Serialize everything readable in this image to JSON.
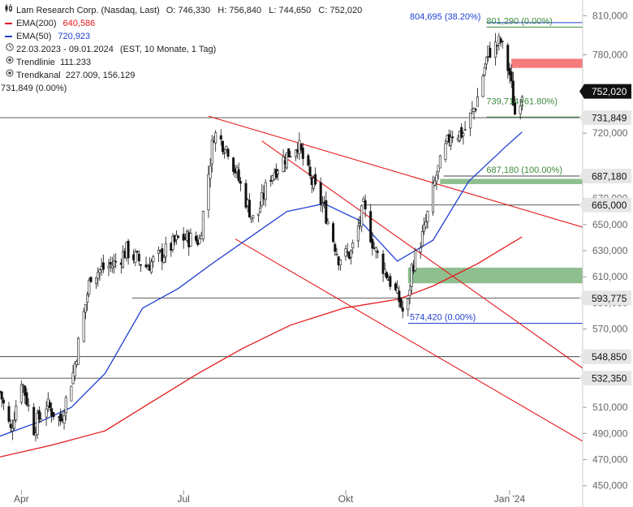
{
  "legend": {
    "title": "Lam Research Corp. (Nasdaq, Last)",
    "ohlc": "O: 746,330   H: 756,840   L: 744,650   C: 752,020",
    "ema200": {
      "label": "EMA(200)",
      "value": "640,586",
      "color": "#e41a1c"
    },
    "ema50": {
      "label": "EMA(50)",
      "value": "720,923",
      "color": "#1f3fd1"
    },
    "range": "22.03.2023 - 09.01.2024",
    "range_info": "(EST, 10 Monate, 1 Tag)",
    "trendline": "Trendlinie  111.233",
    "trendchannel": "Trendkanal  227.009, 156.129",
    "level_label": "731,849 (0.00%)"
  },
  "chart_data": {
    "type": "candlestick",
    "x_ticks": [
      {
        "label": "Apr",
        "date": "2023-04-03"
      },
      {
        "label": "Jul",
        "date": "2023-07-03"
      },
      {
        "label": "Okt",
        "date": "2023-10-02"
      },
      {
        "label": "Jan '24",
        "date": "2024-01-02"
      }
    ],
    "y_ticks": [
      "450,000",
      "470,000",
      "490,000",
      "510,000",
      "530,000",
      "550,000",
      "570,000",
      "590,000",
      "610,000",
      "630,000",
      "650,000",
      "670,000",
      "690,000",
      "720,000",
      "750,000",
      "780,000",
      "810,000"
    ],
    "y_tick_values": [
      450,
      470,
      490,
      510,
      530,
      550,
      570,
      590,
      610,
      630,
      650,
      670,
      690,
      720,
      750,
      780,
      810
    ],
    "ylim": [
      443,
      822
    ],
    "xlim": [
      "2023-03-22",
      "2024-02-12"
    ],
    "last_price": {
      "value": 752.02,
      "label": "752,020"
    },
    "horizontal_levels": [
      {
        "value": 731.849,
        "label": "731,849"
      },
      {
        "value": 687.18,
        "label": "687,180"
      },
      {
        "value": 665.0,
        "label": "665,000"
      },
      {
        "value": 593.775,
        "label": "593,775"
      },
      {
        "value": 548.85,
        "label": "548,850"
      },
      {
        "value": 532.35,
        "label": "532,350"
      }
    ],
    "fib_labels": [
      {
        "text": "804,695 (38.20%)",
        "value": 804.695,
        "color": "#1f3fd1"
      },
      {
        "text": "801,290 (0.00%)",
        "value": 801.29,
        "color": "#3a8a3a"
      },
      {
        "text": "739,714 (61.80%)",
        "value": 739.714,
        "color": "#3a8a3a"
      },
      {
        "text": "687,180 (100.00%)",
        "value": 687.18,
        "color": "#3a8a3a"
      },
      {
        "text": "574,420 (0.00%)",
        "value": 574.42,
        "color": "#1f3fd1"
      }
    ],
    "zones": [
      {
        "from": 770,
        "to": 777,
        "color": "#f47c7c"
      },
      {
        "from": 681,
        "to": 685,
        "color": "#8fbf8f"
      },
      {
        "from": 605,
        "to": 617,
        "color": "#8fbf8f"
      }
    ],
    "trend_lines": [
      {
        "from": {
          "date": "2023-07-17",
          "value": 733
        },
        "to": {
          "date": "2024-02-12",
          "value": 648
        },
        "color": "#e41a1c"
      },
      {
        "from": {
          "date": "2023-08-16",
          "value": 714
        },
        "to": {
          "date": "2024-02-12",
          "value": 540
        },
        "color": "#e41a1c"
      },
      {
        "from": {
          "date": "2023-08-01",
          "value": 639
        },
        "to": {
          "date": "2024-02-12",
          "value": 484
        },
        "color": "#e41a1c"
      }
    ],
    "ema200_points": [
      {
        "date": "2023-03-22",
        "value": 472
      },
      {
        "date": "2023-04-20",
        "value": 481
      },
      {
        "date": "2023-05-20",
        "value": 492
      },
      {
        "date": "2023-06-15",
        "value": 514
      },
      {
        "date": "2023-07-10",
        "value": 535
      },
      {
        "date": "2023-08-05",
        "value": 555
      },
      {
        "date": "2023-09-01",
        "value": 573
      },
      {
        "date": "2023-10-01",
        "value": 586
      },
      {
        "date": "2023-11-01",
        "value": 593
      },
      {
        "date": "2023-11-20",
        "value": 603
      },
      {
        "date": "2023-12-15",
        "value": 620
      },
      {
        "date": "2024-01-09",
        "value": 640.586
      }
    ],
    "ema50_points": [
      {
        "date": "2023-03-22",
        "value": 488
      },
      {
        "date": "2023-04-15",
        "value": 500
      },
      {
        "date": "2023-05-01",
        "value": 510
      },
      {
        "date": "2023-05-20",
        "value": 536
      },
      {
        "date": "2023-06-10",
        "value": 586
      },
      {
        "date": "2023-06-30",
        "value": 601
      },
      {
        "date": "2023-07-20",
        "value": 621
      },
      {
        "date": "2023-08-10",
        "value": 641
      },
      {
        "date": "2023-08-30",
        "value": 660
      },
      {
        "date": "2023-09-20",
        "value": 666
      },
      {
        "date": "2023-10-10",
        "value": 653
      },
      {
        "date": "2023-10-31",
        "value": 622
      },
      {
        "date": "2023-11-20",
        "value": 638
      },
      {
        "date": "2023-12-10",
        "value": 683
      },
      {
        "date": "2023-12-31",
        "value": 710
      },
      {
        "date": "2024-01-09",
        "value": 720.923
      }
    ],
    "close_path": [
      {
        "date": "2023-03-22",
        "value": 522
      },
      {
        "date": "2023-03-28",
        "value": 492
      },
      {
        "date": "2023-04-03",
        "value": 532
      },
      {
        "date": "2023-04-10",
        "value": 494
      },
      {
        "date": "2023-04-17",
        "value": 512
      },
      {
        "date": "2023-04-25",
        "value": 500
      },
      {
        "date": "2023-05-02",
        "value": 536
      },
      {
        "date": "2023-05-12",
        "value": 612
      },
      {
        "date": "2023-05-25",
        "value": 620
      },
      {
        "date": "2023-06-01",
        "value": 630
      },
      {
        "date": "2023-06-12",
        "value": 618
      },
      {
        "date": "2023-06-22",
        "value": 628
      },
      {
        "date": "2023-07-01",
        "value": 640
      },
      {
        "date": "2023-07-12",
        "value": 638
      },
      {
        "date": "2023-07-20",
        "value": 720
      },
      {
        "date": "2023-07-28",
        "value": 708
      },
      {
        "date": "2023-08-04",
        "value": 680
      },
      {
        "date": "2023-08-12",
        "value": 650
      },
      {
        "date": "2023-08-20",
        "value": 686
      },
      {
        "date": "2023-08-28",
        "value": 700
      },
      {
        "date": "2023-09-05",
        "value": 712
      },
      {
        "date": "2023-09-12",
        "value": 685
      },
      {
        "date": "2023-09-20",
        "value": 662
      },
      {
        "date": "2023-09-28",
        "value": 625
      },
      {
        "date": "2023-10-05",
        "value": 628
      },
      {
        "date": "2023-10-12",
        "value": 663
      },
      {
        "date": "2023-10-18",
        "value": 632
      },
      {
        "date": "2023-10-25",
        "value": 612
      },
      {
        "date": "2023-11-01",
        "value": 592
      },
      {
        "date": "2023-11-05",
        "value": 575
      },
      {
        "date": "2023-11-08",
        "value": 617
      },
      {
        "date": "2023-11-15",
        "value": 645
      },
      {
        "date": "2023-11-22",
        "value": 688
      },
      {
        "date": "2023-11-30",
        "value": 720
      },
      {
        "date": "2023-12-07",
        "value": 720
      },
      {
        "date": "2023-12-14",
        "value": 742
      },
      {
        "date": "2023-12-21",
        "value": 782
      },
      {
        "date": "2023-12-28",
        "value": 790
      },
      {
        "date": "2024-01-02",
        "value": 765
      },
      {
        "date": "2024-01-05",
        "value": 735
      },
      {
        "date": "2024-01-09",
        "value": 752.02
      }
    ]
  }
}
